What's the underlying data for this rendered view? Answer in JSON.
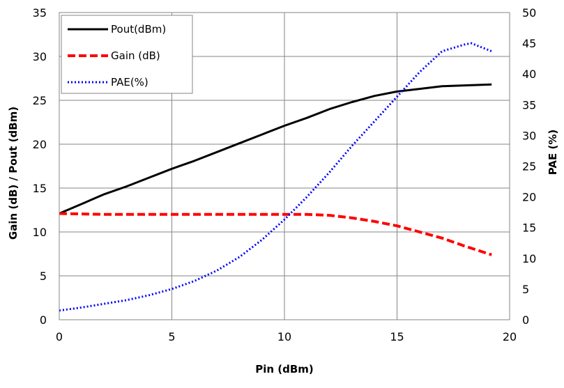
{
  "chart_data": {
    "type": "line",
    "title": "",
    "xlabel": "Pin (dBm)",
    "ylabel": "Gain (dB) / Pout (dBm)",
    "y2label": "PAE (%)",
    "xlim": [
      0,
      20
    ],
    "ylim": [
      0,
      35
    ],
    "y2lim": [
      0,
      50
    ],
    "x_ticks": [
      0,
      5,
      10,
      15,
      20
    ],
    "y_ticks": [
      0,
      5,
      10,
      15,
      20,
      25,
      30,
      35
    ],
    "y2_ticks": [
      0,
      5,
      10,
      15,
      20,
      25,
      30,
      35,
      40,
      45,
      50
    ],
    "grid": true,
    "legend_position": "top-left",
    "series": [
      {
        "name": "Pout(dBm)",
        "axis": "left",
        "color": "#000000",
        "style": "solid",
        "x": [
          0,
          1,
          2,
          3,
          4,
          5,
          6,
          7,
          8,
          9,
          10,
          11,
          12,
          13,
          14,
          15,
          16,
          17,
          18,
          19.2
        ],
        "y": [
          12.1,
          13.2,
          14.3,
          15.2,
          16.2,
          17.2,
          18.1,
          19.1,
          20.1,
          21.1,
          22.1,
          23.0,
          24.0,
          24.8,
          25.5,
          26.0,
          26.3,
          26.6,
          26.7,
          26.8
        ]
      },
      {
        "name": "Gain (dB)",
        "axis": "left",
        "color": "#ff0000",
        "style": "dashed",
        "x": [
          0,
          2,
          4,
          6,
          8,
          10,
          11,
          12,
          13,
          14,
          15,
          16,
          17,
          18,
          19.2
        ],
        "y": [
          12.1,
          12.0,
          12.0,
          12.0,
          12.0,
          12.0,
          12.0,
          11.9,
          11.6,
          11.2,
          10.7,
          10.0,
          9.3,
          8.4,
          7.4
        ]
      },
      {
        "name": "PAE(%)",
        "axis": "right",
        "color": "#0000ff",
        "style": "dotted",
        "x": [
          0,
          1,
          2,
          3,
          4,
          5,
          6,
          7,
          8,
          9,
          10,
          11,
          12,
          13,
          14,
          15,
          16,
          17,
          18,
          18.3,
          19.2
        ],
        "y": [
          1.5,
          2.0,
          2.6,
          3.2,
          4.0,
          5.0,
          6.3,
          8.0,
          10.2,
          13.0,
          16.3,
          20.0,
          24.0,
          28.3,
          32.3,
          36.3,
          40.3,
          43.7,
          44.8,
          45.0,
          43.7
        ]
      }
    ]
  }
}
